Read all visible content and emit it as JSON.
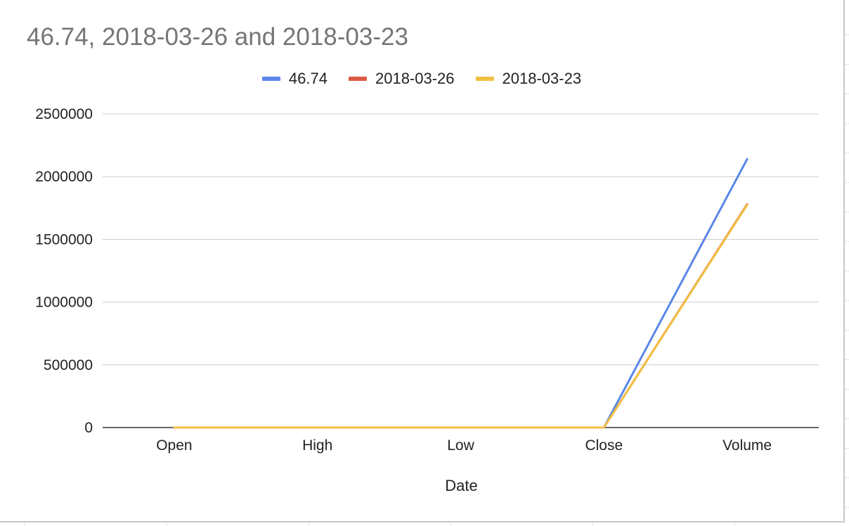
{
  "chart_data": {
    "type": "line",
    "title": "46.74, 2018-03-26 and 2018-03-23",
    "xlabel": "Date",
    "ylabel": "",
    "categories": [
      "Open",
      "High",
      "Low",
      "Close",
      "Volume"
    ],
    "ylim": [
      0,
      2500000
    ],
    "yticks": [
      0,
      500000,
      1000000,
      1500000,
      2000000,
      2500000
    ],
    "grid": true,
    "legend_position": "top",
    "series": [
      {
        "name": "46.74",
        "color": "#5b87e8",
        "values": [
          46.74,
          46.74,
          46.74,
          46.74,
          2140000
        ]
      },
      {
        "name": "2018-03-26",
        "color": "#dc5a45",
        "values": [
          46.5,
          46.5,
          46.5,
          46.5,
          1780000
        ]
      },
      {
        "name": "2018-03-23",
        "color": "#f1c043",
        "values": [
          47.0,
          47.0,
          46.0,
          46.0,
          1775000
        ]
      }
    ]
  }
}
